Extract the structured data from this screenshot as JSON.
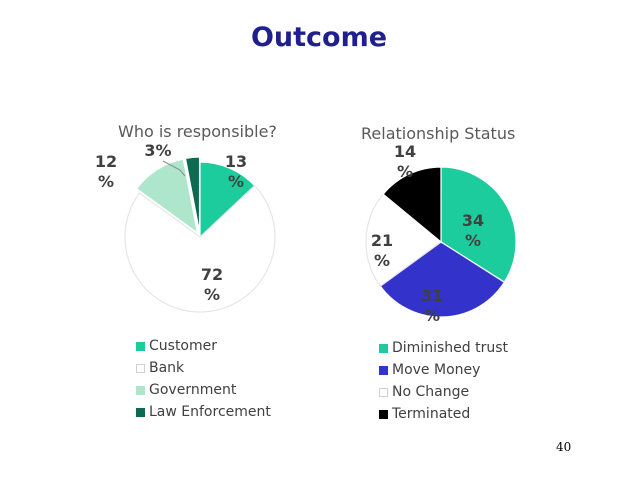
{
  "slide": {
    "title": "Outcome",
    "page_number": "40"
  },
  "chart_data": [
    {
      "type": "pie",
      "title": "Who is responsible?",
      "categories": [
        "Customer",
        "Bank",
        "Government",
        "Law Enforcement"
      ],
      "values": [
        13,
        72,
        12,
        3
      ],
      "value_labels": [
        [
          "13",
          "%"
        ],
        [
          "72",
          "%"
        ],
        [
          "12",
          "%"
        ],
        [
          "3%"
        ]
      ],
      "colors": [
        "#1ccc9c",
        "#ffffff",
        "#aee6cc",
        "#0b6b50"
      ],
      "legend": "bottom"
    },
    {
      "type": "pie",
      "title": "Relationship Status",
      "categories": [
        "Diminished trust",
        "Move Money",
        "No Change",
        "Terminated"
      ],
      "values": [
        34,
        31,
        21,
        14
      ],
      "value_labels": [
        [
          "34",
          "%"
        ],
        [
          "31",
          "%"
        ],
        [
          "21",
          "%"
        ],
        [
          "14",
          "%"
        ]
      ],
      "colors": [
        "#1ccc9c",
        "#3333cc",
        "#ffffff",
        "#000000"
      ],
      "legend": "bottom"
    }
  ]
}
